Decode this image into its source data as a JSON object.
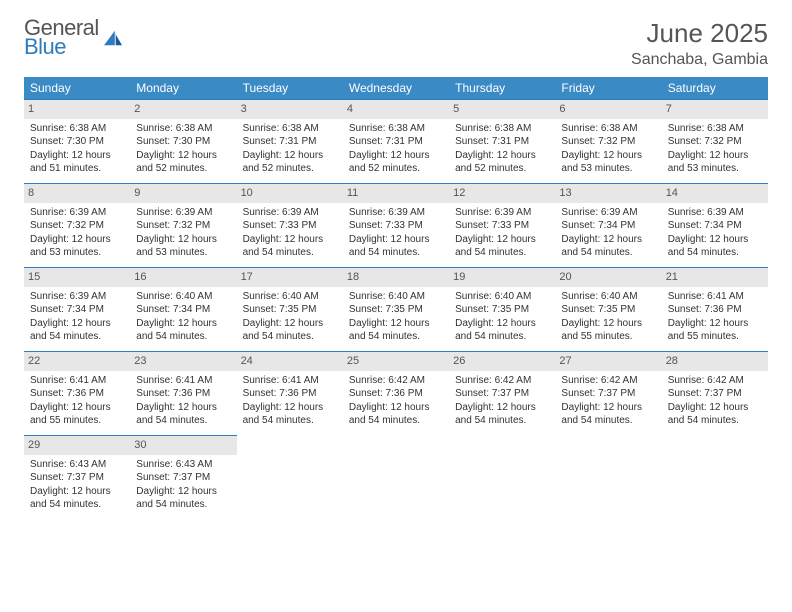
{
  "brand": {
    "word1": "General",
    "word2": "Blue"
  },
  "title": {
    "month": "June 2025",
    "location": "Sanchaba, Gambia"
  },
  "style": {
    "header_bg": "#3a8ac6",
    "header_fg": "#ffffff",
    "border_color": "#2f7bbf",
    "daynum_bg": "#e7e7e7",
    "text_color": "#333333",
    "brand_gray": "#555555",
    "brand_blue": "#2f7bbf",
    "title_fontsize_pt": 20,
    "loc_fontsize_pt": 12,
    "head_fontsize_pt": 9,
    "cell_fontsize_pt": 7.5
  },
  "days_of_week": [
    "Sunday",
    "Monday",
    "Tuesday",
    "Wednesday",
    "Thursday",
    "Friday",
    "Saturday"
  ],
  "weeks": [
    [
      {
        "n": "1",
        "sr": "Sunrise: 6:38 AM",
        "ss": "Sunset: 7:30 PM",
        "d1": "Daylight: 12 hours",
        "d2": "and 51 minutes."
      },
      {
        "n": "2",
        "sr": "Sunrise: 6:38 AM",
        "ss": "Sunset: 7:30 PM",
        "d1": "Daylight: 12 hours",
        "d2": "and 52 minutes."
      },
      {
        "n": "3",
        "sr": "Sunrise: 6:38 AM",
        "ss": "Sunset: 7:31 PM",
        "d1": "Daylight: 12 hours",
        "d2": "and 52 minutes."
      },
      {
        "n": "4",
        "sr": "Sunrise: 6:38 AM",
        "ss": "Sunset: 7:31 PM",
        "d1": "Daylight: 12 hours",
        "d2": "and 52 minutes."
      },
      {
        "n": "5",
        "sr": "Sunrise: 6:38 AM",
        "ss": "Sunset: 7:31 PM",
        "d1": "Daylight: 12 hours",
        "d2": "and 52 minutes."
      },
      {
        "n": "6",
        "sr": "Sunrise: 6:38 AM",
        "ss": "Sunset: 7:32 PM",
        "d1": "Daylight: 12 hours",
        "d2": "and 53 minutes."
      },
      {
        "n": "7",
        "sr": "Sunrise: 6:38 AM",
        "ss": "Sunset: 7:32 PM",
        "d1": "Daylight: 12 hours",
        "d2": "and 53 minutes."
      }
    ],
    [
      {
        "n": "8",
        "sr": "Sunrise: 6:39 AM",
        "ss": "Sunset: 7:32 PM",
        "d1": "Daylight: 12 hours",
        "d2": "and 53 minutes."
      },
      {
        "n": "9",
        "sr": "Sunrise: 6:39 AM",
        "ss": "Sunset: 7:32 PM",
        "d1": "Daylight: 12 hours",
        "d2": "and 53 minutes."
      },
      {
        "n": "10",
        "sr": "Sunrise: 6:39 AM",
        "ss": "Sunset: 7:33 PM",
        "d1": "Daylight: 12 hours",
        "d2": "and 54 minutes."
      },
      {
        "n": "11",
        "sr": "Sunrise: 6:39 AM",
        "ss": "Sunset: 7:33 PM",
        "d1": "Daylight: 12 hours",
        "d2": "and 54 minutes."
      },
      {
        "n": "12",
        "sr": "Sunrise: 6:39 AM",
        "ss": "Sunset: 7:33 PM",
        "d1": "Daylight: 12 hours",
        "d2": "and 54 minutes."
      },
      {
        "n": "13",
        "sr": "Sunrise: 6:39 AM",
        "ss": "Sunset: 7:34 PM",
        "d1": "Daylight: 12 hours",
        "d2": "and 54 minutes."
      },
      {
        "n": "14",
        "sr": "Sunrise: 6:39 AM",
        "ss": "Sunset: 7:34 PM",
        "d1": "Daylight: 12 hours",
        "d2": "and 54 minutes."
      }
    ],
    [
      {
        "n": "15",
        "sr": "Sunrise: 6:39 AM",
        "ss": "Sunset: 7:34 PM",
        "d1": "Daylight: 12 hours",
        "d2": "and 54 minutes."
      },
      {
        "n": "16",
        "sr": "Sunrise: 6:40 AM",
        "ss": "Sunset: 7:34 PM",
        "d1": "Daylight: 12 hours",
        "d2": "and 54 minutes."
      },
      {
        "n": "17",
        "sr": "Sunrise: 6:40 AM",
        "ss": "Sunset: 7:35 PM",
        "d1": "Daylight: 12 hours",
        "d2": "and 54 minutes."
      },
      {
        "n": "18",
        "sr": "Sunrise: 6:40 AM",
        "ss": "Sunset: 7:35 PM",
        "d1": "Daylight: 12 hours",
        "d2": "and 54 minutes."
      },
      {
        "n": "19",
        "sr": "Sunrise: 6:40 AM",
        "ss": "Sunset: 7:35 PM",
        "d1": "Daylight: 12 hours",
        "d2": "and 54 minutes."
      },
      {
        "n": "20",
        "sr": "Sunrise: 6:40 AM",
        "ss": "Sunset: 7:35 PM",
        "d1": "Daylight: 12 hours",
        "d2": "and 55 minutes."
      },
      {
        "n": "21",
        "sr": "Sunrise: 6:41 AM",
        "ss": "Sunset: 7:36 PM",
        "d1": "Daylight: 12 hours",
        "d2": "and 55 minutes."
      }
    ],
    [
      {
        "n": "22",
        "sr": "Sunrise: 6:41 AM",
        "ss": "Sunset: 7:36 PM",
        "d1": "Daylight: 12 hours",
        "d2": "and 55 minutes."
      },
      {
        "n": "23",
        "sr": "Sunrise: 6:41 AM",
        "ss": "Sunset: 7:36 PM",
        "d1": "Daylight: 12 hours",
        "d2": "and 54 minutes."
      },
      {
        "n": "24",
        "sr": "Sunrise: 6:41 AM",
        "ss": "Sunset: 7:36 PM",
        "d1": "Daylight: 12 hours",
        "d2": "and 54 minutes."
      },
      {
        "n": "25",
        "sr": "Sunrise: 6:42 AM",
        "ss": "Sunset: 7:36 PM",
        "d1": "Daylight: 12 hours",
        "d2": "and 54 minutes."
      },
      {
        "n": "26",
        "sr": "Sunrise: 6:42 AM",
        "ss": "Sunset: 7:37 PM",
        "d1": "Daylight: 12 hours",
        "d2": "and 54 minutes."
      },
      {
        "n": "27",
        "sr": "Sunrise: 6:42 AM",
        "ss": "Sunset: 7:37 PM",
        "d1": "Daylight: 12 hours",
        "d2": "and 54 minutes."
      },
      {
        "n": "28",
        "sr": "Sunrise: 6:42 AM",
        "ss": "Sunset: 7:37 PM",
        "d1": "Daylight: 12 hours",
        "d2": "and 54 minutes."
      }
    ],
    [
      {
        "n": "29",
        "sr": "Sunrise: 6:43 AM",
        "ss": "Sunset: 7:37 PM",
        "d1": "Daylight: 12 hours",
        "d2": "and 54 minutes."
      },
      {
        "n": "30",
        "sr": "Sunrise: 6:43 AM",
        "ss": "Sunset: 7:37 PM",
        "d1": "Daylight: 12 hours",
        "d2": "and 54 minutes."
      },
      {
        "empty": true
      },
      {
        "empty": true
      },
      {
        "empty": true
      },
      {
        "empty": true
      },
      {
        "empty": true
      }
    ]
  ]
}
